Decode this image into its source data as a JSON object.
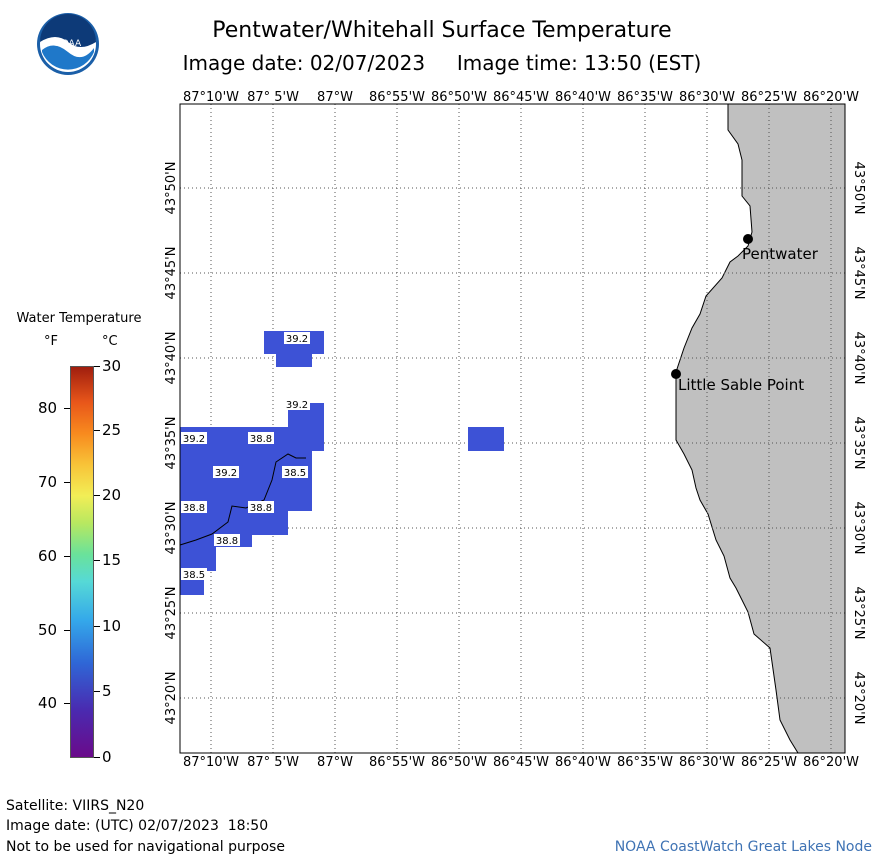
{
  "header": {
    "title": "Pentwater/Whitehall Surface Temperature",
    "subtitle_date": "Image date: 02/07/2023",
    "subtitle_time": "Image time: 13:50 (EST)"
  },
  "logo": {
    "text": "NOAA",
    "icon": "noaa-logo-icon"
  },
  "legend": {
    "title": "Water Temperature",
    "unit_f": "°F",
    "unit_c": "°C",
    "f_ticks": [
      "40",
      "50",
      "60",
      "70",
      "80"
    ],
    "c_ticks": [
      "0",
      "5",
      "10",
      "15",
      "20",
      "25",
      "30"
    ]
  },
  "map": {
    "lon_labels": [
      "87°10'W",
      "87° 5'W",
      "87°W",
      "86°55'W",
      "86°50'W",
      "86°45'W",
      "86°40'W",
      "86°35'W",
      "86°30'W",
      "86°25'W",
      "86°20'W"
    ],
    "lat_labels": [
      "43°50'N",
      "43°45'N",
      "43°40'N",
      "43°35'N",
      "43°30'N",
      "43°25'N",
      "43°20'N"
    ],
    "places": [
      {
        "name": "Pentwater"
      },
      {
        "name": "Little Sable Point"
      }
    ],
    "temp_labels": [
      "39.2",
      "39.2",
      "39.2",
      "38.8",
      "39.2",
      "38.5",
      "38.8",
      "38.8",
      "38.8",
      "38.5"
    ],
    "colors": {
      "water_fill": "#3d52d6",
      "land_fill": "#c0c0c0"
    }
  },
  "footer": {
    "satellite": "Satellite: VIIRS_N20",
    "utc_date": "Image date: (UTC) 02/07/2023  18:50",
    "disclaimer": "Not to be used for navigational purpose",
    "credit": "NOAA CoastWatch Great Lakes Node"
  }
}
